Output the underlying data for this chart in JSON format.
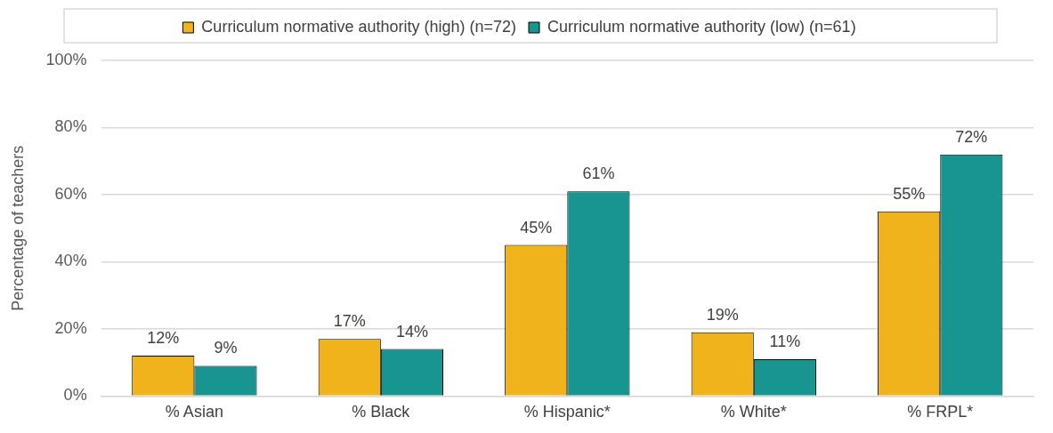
{
  "chart_data": {
    "type": "bar",
    "ylabel": "Percentage of teachers",
    "categories": [
      "% Asian",
      "% Black",
      "% Hispanic*",
      "% White*",
      "% FRPL*"
    ],
    "series": [
      {
        "name": "Curriculum normative authority (high) (n=72)",
        "color": "#f0b31b",
        "values": [
          12,
          17,
          45,
          19,
          55
        ],
        "value_labels": [
          "12%",
          "17%",
          "45%",
          "19%",
          "55%"
        ]
      },
      {
        "name": "Curriculum normative authority (low) (n=61)",
        "color": "#199591",
        "values": [
          9,
          14,
          61,
          11,
          72
        ],
        "value_labels": [
          "9%",
          "14%",
          "61%",
          "11%",
          "72%"
        ]
      }
    ],
    "ylim": [
      0,
      100
    ],
    "yticks": [
      {
        "value": 0,
        "label": "0%"
      },
      {
        "value": 20,
        "label": "20%"
      },
      {
        "value": 40,
        "label": "40%"
      },
      {
        "value": 60,
        "label": "60%"
      },
      {
        "value": 80,
        "label": "80%"
      },
      {
        "value": 100,
        "label": "100%"
      }
    ],
    "grid": "y",
    "legend": "top"
  }
}
